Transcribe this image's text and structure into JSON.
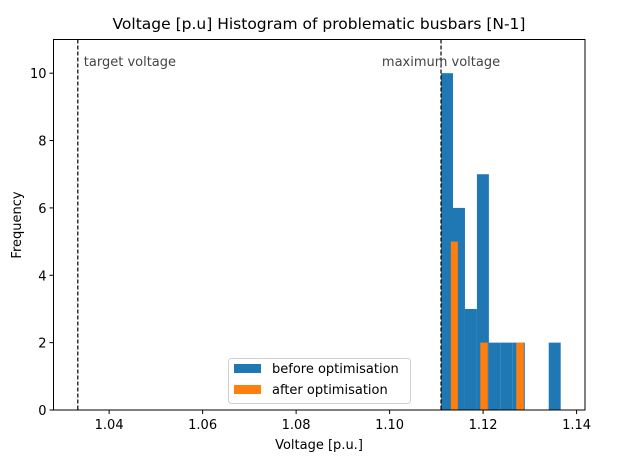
{
  "chart_data": {
    "type": "bar",
    "title": "Voltage [p.u] Histogram of problematic busbars [N-1]",
    "xlabel": "Voltage [p.u.]",
    "ylabel": "Frequency",
    "xlim": [
      1.0281,
      1.1418
    ],
    "ylim": [
      0,
      11
    ],
    "xticks": [
      1.04,
      1.06,
      1.08,
      1.1,
      1.12,
      1.14
    ],
    "xtick_labels": [
      "1.04",
      "1.06",
      "1.08",
      "1.10",
      "1.12",
      "1.14"
    ],
    "yticks": [
      0,
      2,
      4,
      6,
      8,
      10
    ],
    "ytick_labels": [
      "0",
      "2",
      "4",
      "6",
      "8",
      "10"
    ],
    "grid": false,
    "legend_position": "lower-center",
    "series": [
      {
        "name": "before optimisation",
        "color": "#1f77b4",
        "bin_edges": [
          1.111,
          1.11356,
          1.11612,
          1.11868,
          1.12124,
          1.1238,
          1.12636,
          1.12892,
          1.13148,
          1.13404,
          1.1366
        ],
        "counts": [
          10,
          6,
          3,
          7,
          2,
          2,
          2,
          0,
          0,
          2
        ]
      },
      {
        "name": "after optimisation",
        "color": "#ff7f0e",
        "bars": [
          {
            "x0": 1.1131,
            "x1": 1.1146,
            "count": 5
          },
          {
            "x0": 1.1194,
            "x1": 1.121,
            "count": 2
          },
          {
            "x0": 1.1271,
            "x1": 1.1287,
            "count": 2
          }
        ]
      }
    ],
    "annotations": [
      {
        "label": "target voltage",
        "x": 1.0333
      },
      {
        "label": "maximum voltage",
        "x": 1.111
      }
    ]
  }
}
